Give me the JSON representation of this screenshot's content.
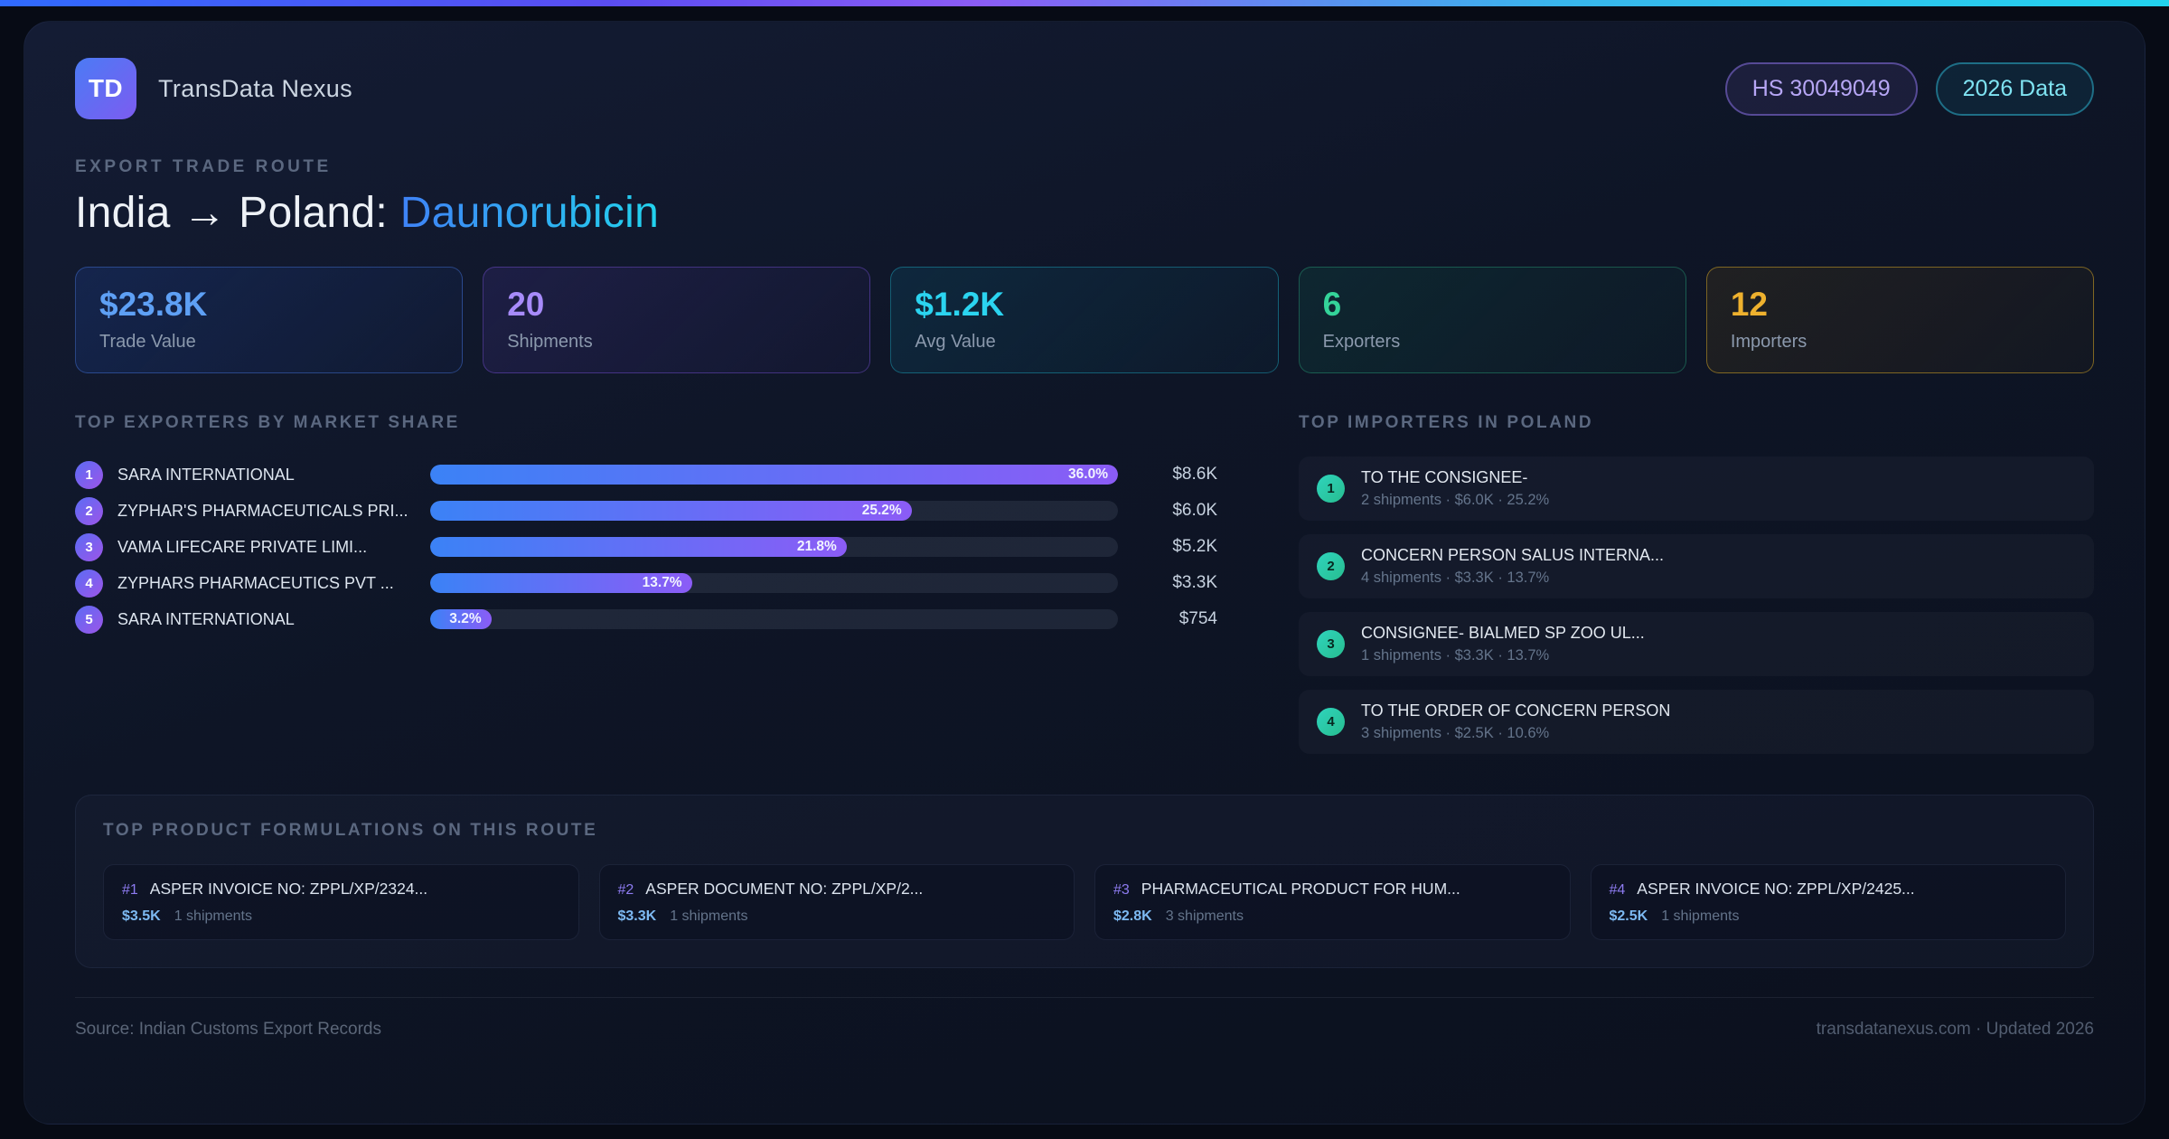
{
  "header": {
    "logo_text": "TD",
    "app_name": "TransData Nexus",
    "hs_badge": "HS 30049049",
    "year_badge": "2026 Data"
  },
  "hero": {
    "eyebrow": "EXPORT TRADE ROUTE",
    "title_prefix": "India → Poland: ",
    "title_highlight": "Daunorubicin"
  },
  "stats": [
    {
      "value": "$23.8K",
      "label": "Trade Value",
      "color": "#5ea0f5"
    },
    {
      "value": "20",
      "label": "Shipments",
      "color": "#a78bfa"
    },
    {
      "value": "$1.2K",
      "label": "Avg Value",
      "color": "#2bd4f0"
    },
    {
      "value": "6",
      "label": "Exporters",
      "color": "#34d399"
    },
    {
      "value": "12",
      "label": "Importers",
      "color": "#eeb12e"
    }
  ],
  "exporters": {
    "heading": "TOP EXPORTERS BY MARKET SHARE",
    "rows": [
      {
        "rank": "1",
        "name": "SARA INTERNATIONAL",
        "share": "36.0%",
        "value": "$8.6K"
      },
      {
        "rank": "2",
        "name": "ZYPHAR'S PHARMACEUTICALS PRI...",
        "share": "25.2%",
        "value": "$6.0K"
      },
      {
        "rank": "3",
        "name": "VAMA LIFECARE PRIVATE LIMI...",
        "share": "21.8%",
        "value": "$5.2K"
      },
      {
        "rank": "4",
        "name": "ZYPHARS PHARMACEUTICS PVT ...",
        "share": "13.7%",
        "value": "$3.3K"
      },
      {
        "rank": "5",
        "name": "SARA INTERNATIONAL",
        "share": "3.2%",
        "value": "$754"
      }
    ]
  },
  "importers": {
    "heading": "TOP IMPORTERS IN POLAND",
    "rows": [
      {
        "rank": "1",
        "name": "TO THE CONSIGNEE-",
        "meta": "2 shipments · $6.0K · 25.2%"
      },
      {
        "rank": "2",
        "name": "CONCERN PERSON SALUS INTERNA...",
        "meta": "4 shipments · $3.3K · 13.7%"
      },
      {
        "rank": "3",
        "name": "CONSIGNEE- BIALMED SP ZOO UL...",
        "meta": "1 shipments · $3.3K · 13.7%"
      },
      {
        "rank": "4",
        "name": "TO THE ORDER OF CONCERN PERSON",
        "meta": "3 shipments · $2.5K · 10.6%"
      }
    ]
  },
  "products": {
    "heading": "TOP PRODUCT FORMULATIONS ON THIS ROUTE",
    "cards": [
      {
        "rank": "#1",
        "name": "ASPER INVOICE NO: ZPPL/XP/2324...",
        "value": "$3.5K",
        "shipments": "1 shipments"
      },
      {
        "rank": "#2",
        "name": "ASPER DOCUMENT NO: ZPPL/XP/2...",
        "value": "$3.3K",
        "shipments": "1 shipments"
      },
      {
        "rank": "#3",
        "name": "PHARMACEUTICAL PRODUCT FOR HUM...",
        "value": "$2.8K",
        "shipments": "3 shipments"
      },
      {
        "rank": "#4",
        "name": "ASPER INVOICE NO: ZPPL/XP/2425...",
        "value": "$2.5K",
        "shipments": "1 shipments"
      }
    ]
  },
  "footer": {
    "source": "Source: Indian Customs Export Records",
    "site": "transdatanexus.com · Updated 2026"
  }
}
